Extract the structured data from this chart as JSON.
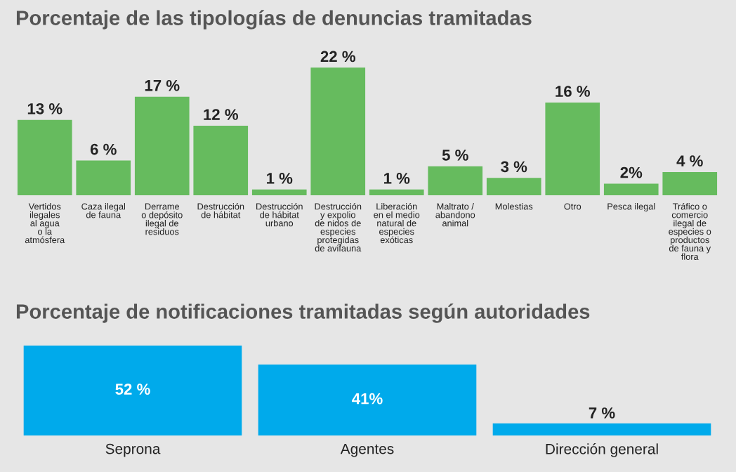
{
  "chart_data": [
    {
      "type": "bar",
      "title": "Porcentaje de las tipologías de denuncias tramitadas",
      "categories": [
        "Vertidos\nilegales\nal agua\no la\natmósfera",
        "Caza ilegal\nde fauna",
        "Derrame\no depósito\nilegal de\nresiduos",
        "Destrucción\nde hábitat",
        "Destrucción\nde hábitat\nurbano",
        "Destrucción\ny expolio\nde nidos de\nespecies\nprotegidas\nde avifauna",
        "Liberación\nen el medio\nnatural de\nespecies\nexóticas",
        "Maltrato /\nabandono\nanimal",
        "Molestias",
        "Otro",
        "Pesca ilegal",
        "Tráfico o\ncomercio\nilegal de\nespecies o\nproductos\nde fauna y\nflora"
      ],
      "values": [
        13,
        6,
        17,
        12,
        1,
        22,
        1,
        5,
        3,
        16,
        2,
        4
      ],
      "value_labels": [
        "13 %",
        "6 %",
        "17 %",
        "12 %",
        "1 %",
        "22 %",
        "1 %",
        "5 %",
        "3 %",
        "16 %",
        "2%",
        "4 %"
      ],
      "color": "#66bb5e",
      "grid": false,
      "legend": false
    },
    {
      "type": "bar",
      "title": "Porcentaje de notificaciones tramitadas según autoridades",
      "categories": [
        "Seprona",
        "Agentes",
        "Dirección general"
      ],
      "values": [
        52,
        41,
        7
      ],
      "value_labels": [
        "52 %",
        "41%",
        "7 %"
      ],
      "color": "#00aaeb",
      "grid": false,
      "legend": false
    }
  ]
}
